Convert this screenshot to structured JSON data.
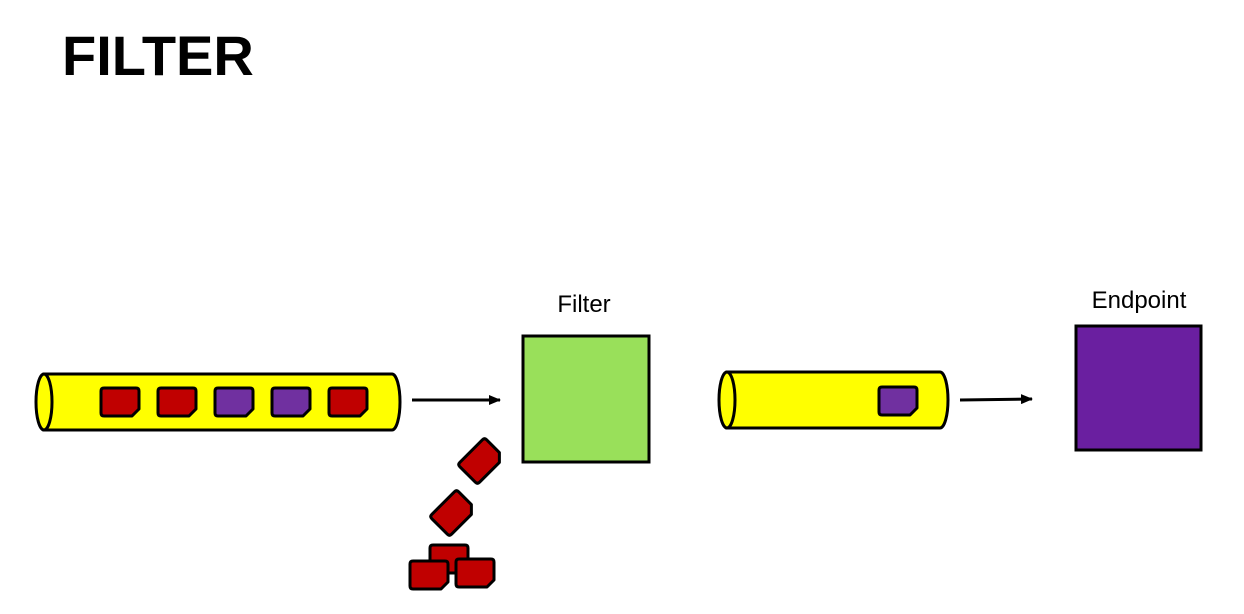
{
  "slide": {
    "title": "FILTER"
  },
  "diagram": {
    "filter_label": "Filter",
    "endpoint_label": "Endpoint",
    "input_pipe_messages": [
      "red",
      "red",
      "purple",
      "purple",
      "red"
    ],
    "output_pipe_messages": [
      "purple"
    ],
    "discarded_messages_count": 5
  },
  "colors": {
    "pipe": "#ffff00",
    "filter": "#99e05a",
    "endpoint": "#6a1fa0",
    "message_red": "#c00000",
    "message_purple": "#7030a0",
    "outline": "#000000"
  }
}
